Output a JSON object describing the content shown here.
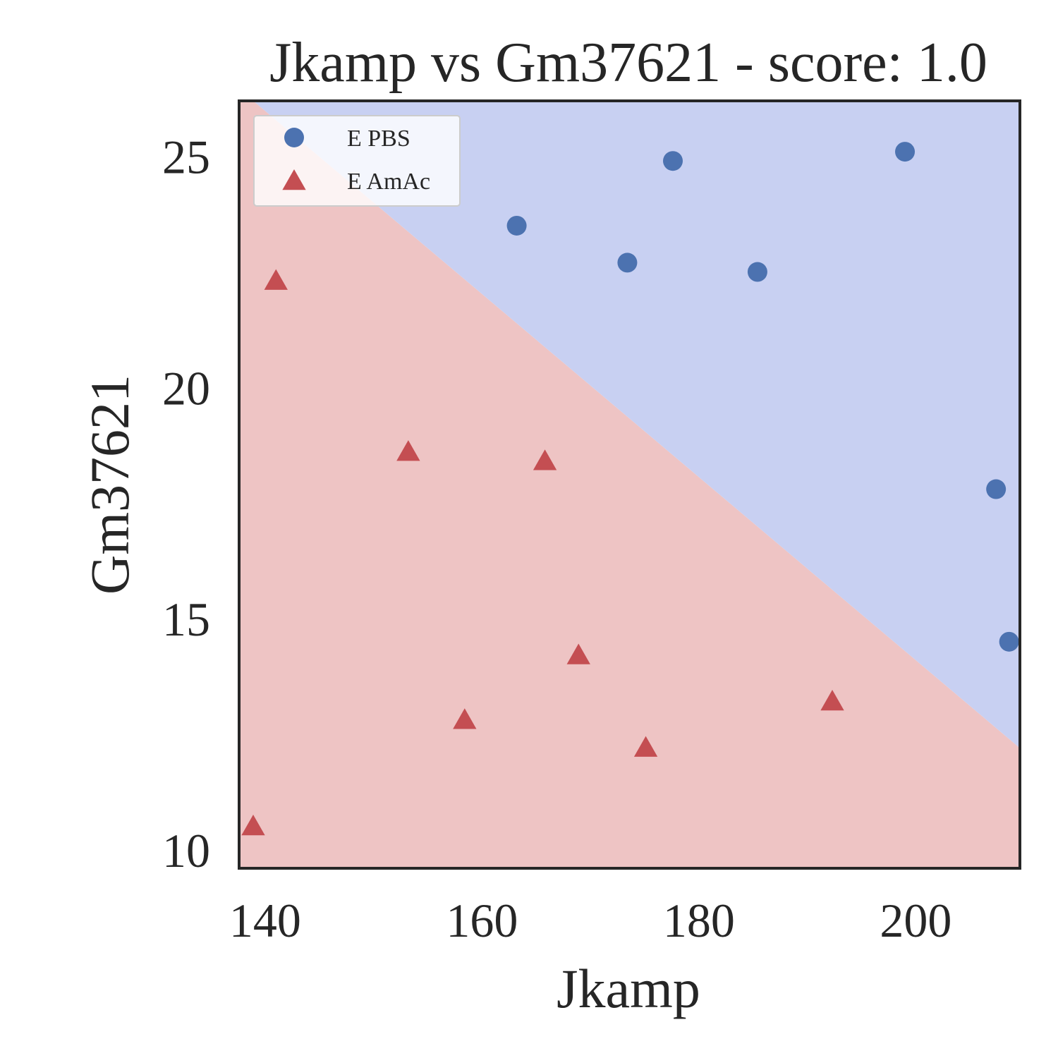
{
  "chart_data": {
    "type": "scatter",
    "title": "Jkamp vs Gm37621 - score: 1.0",
    "xlabel": "Jkamp",
    "ylabel": "Gm37621",
    "xlim": [
      137.6,
      209.6
    ],
    "ylim": [
      9.6,
      26.2
    ],
    "xticks": [
      140,
      160,
      180,
      200
    ],
    "yticks": [
      10,
      15,
      20,
      25
    ],
    "grid": false,
    "legend_position": "upper-left",
    "decision_boundary": {
      "left": [
        138.9,
        26.2
      ],
      "right": [
        209.6,
        12.2
      ]
    },
    "region_colors": {
      "upper": "#c8d0f2",
      "lower": "#eec4c4"
    },
    "series": [
      {
        "name": "E PBS",
        "marker": "circle",
        "color": "#4c72b0",
        "points": [
          [
            163.2,
            23.5
          ],
          [
            177.6,
            24.9
          ],
          [
            173.4,
            22.7
          ],
          [
            185.4,
            22.5
          ],
          [
            199.0,
            25.1
          ],
          [
            207.4,
            17.8
          ],
          [
            208.6,
            14.5
          ]
        ]
      },
      {
        "name": "E AmAc",
        "marker": "triangle",
        "color": "#c44e52",
        "points": [
          [
            141.0,
            22.3
          ],
          [
            153.2,
            18.6
          ],
          [
            165.8,
            18.4
          ],
          [
            168.9,
            14.2
          ],
          [
            158.4,
            12.8
          ],
          [
            175.1,
            12.2
          ],
          [
            192.3,
            13.2
          ],
          [
            138.9,
            10.5
          ]
        ]
      }
    ]
  }
}
